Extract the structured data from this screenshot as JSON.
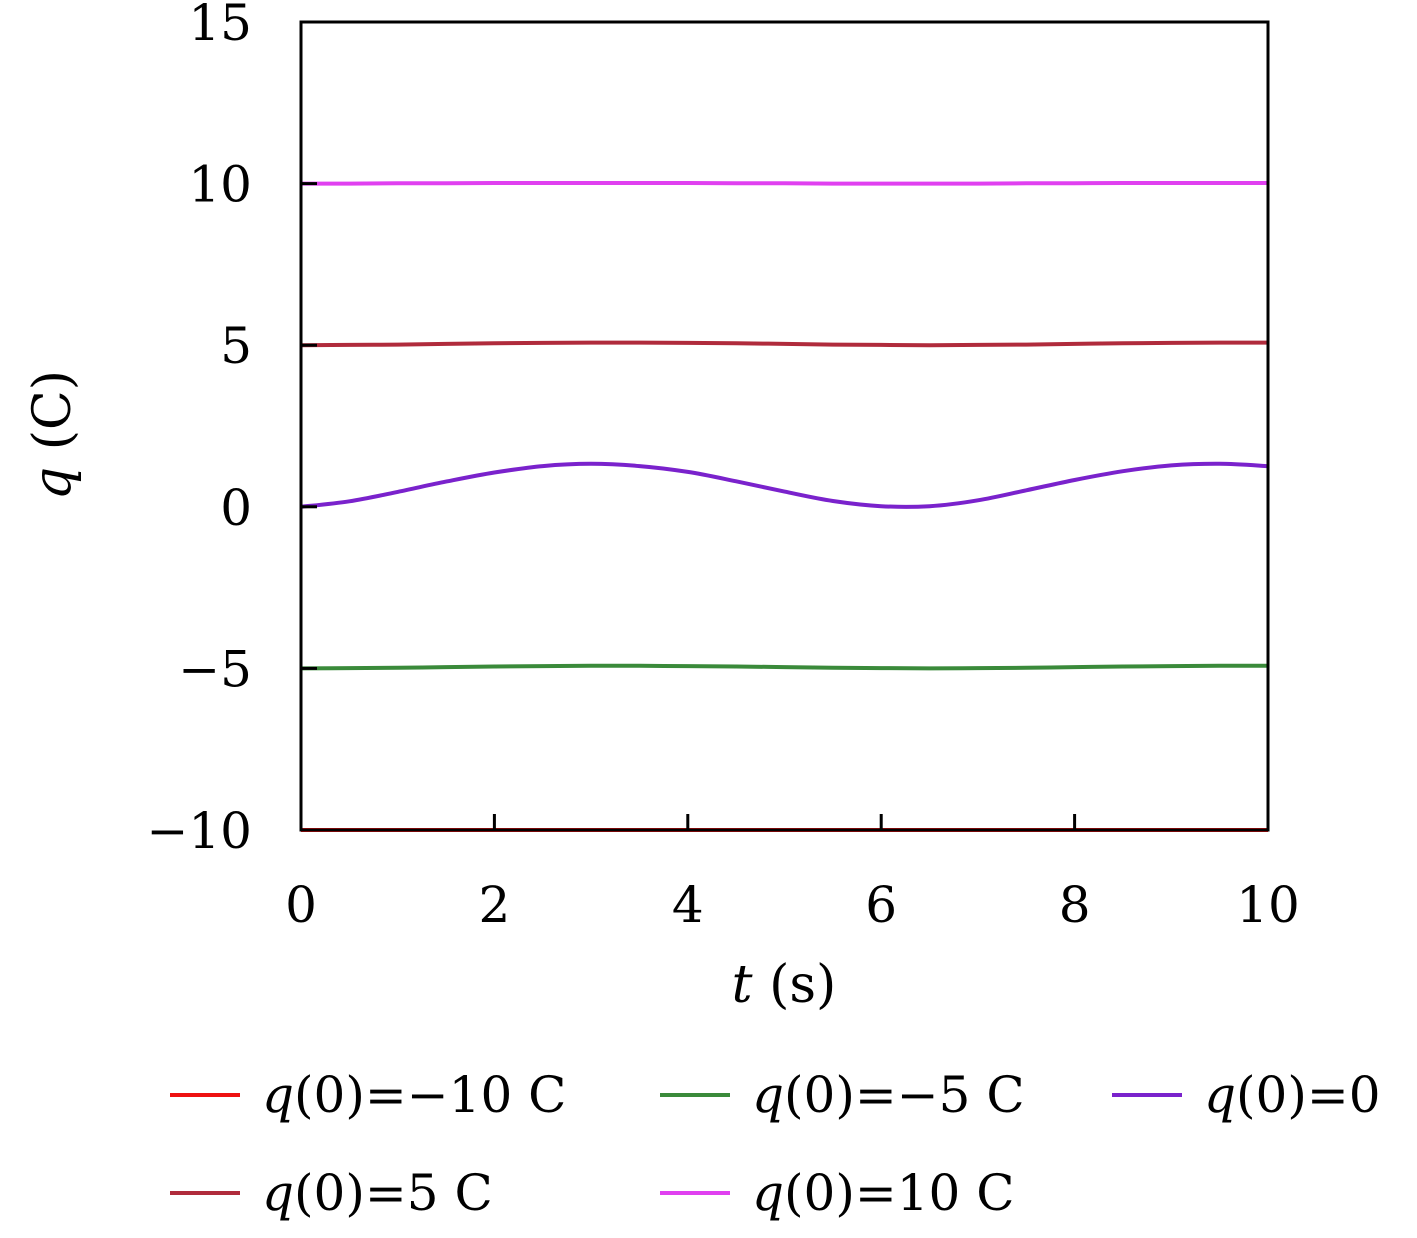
{
  "chart_data": {
    "type": "line",
    "xlabel_var": "t",
    "xlabel_unit": "(s)",
    "ylabel_var": "q",
    "ylabel_unit": "(C)",
    "xlim": [
      0,
      10
    ],
    "ylim": [
      -10,
      15
    ],
    "xticks": [
      0,
      2,
      4,
      6,
      8,
      10
    ],
    "xtick_labels": [
      "0",
      "2",
      "4",
      "6",
      "8",
      "10"
    ],
    "yticks": [
      -10,
      -5,
      0,
      5,
      10,
      15
    ],
    "ytick_labels": [
      "−10",
      "−5",
      "0",
      "5",
      "10",
      "15"
    ],
    "grid": false,
    "legend_position": "bottom",
    "x": [
      0,
      0.5,
      1,
      1.5,
      2,
      2.5,
      3,
      3.5,
      4,
      4.5,
      5,
      5.5,
      6,
      6.5,
      7,
      7.5,
      8,
      8.5,
      9,
      9.5,
      10
    ],
    "series": [
      {
        "name": "q(0)=−10 C",
        "color": "#ee1111",
        "values": [
          -10,
          -10,
          -10,
          -10,
          -10,
          -10,
          -10,
          -10,
          -10,
          -10,
          -10,
          -10,
          -10,
          -10,
          -10,
          -10,
          -10,
          -10,
          -10,
          -10,
          -10
        ]
      },
      {
        "name": "q(0)=−5 C",
        "color": "#3a8a3a",
        "values": [
          -5.0,
          -4.99,
          -4.98,
          -4.96,
          -4.94,
          -4.93,
          -4.92,
          -4.92,
          -4.93,
          -4.94,
          -4.96,
          -4.98,
          -4.99,
          -5.0,
          -4.99,
          -4.98,
          -4.96,
          -4.94,
          -4.93,
          -4.92,
          -4.92
        ]
      },
      {
        "name": "q(0)=0",
        "color": "#7a22cc",
        "values": [
          0,
          0.17,
          0.46,
          0.78,
          1.06,
          1.26,
          1.33,
          1.26,
          1.08,
          0.79,
          0.47,
          0.18,
          0.02,
          0.02,
          0.2,
          0.51,
          0.83,
          1.1,
          1.28,
          1.33,
          1.26
        ]
      },
      {
        "name": "q(0)=5 C",
        "color": "#b02b3c",
        "values": [
          5.0,
          5.01,
          5.02,
          5.04,
          5.06,
          5.07,
          5.08,
          5.08,
          5.07,
          5.06,
          5.04,
          5.02,
          5.01,
          5.0,
          5.01,
          5.02,
          5.04,
          5.06,
          5.07,
          5.08,
          5.08
        ]
      },
      {
        "name": "q(0)=10 C",
        "color": "#e040f0",
        "values": [
          10.0,
          10.0,
          10.01,
          10.01,
          10.02,
          10.02,
          10.02,
          10.02,
          10.02,
          10.01,
          10.01,
          10.0,
          10.0,
          10.0,
          10.0,
          10.01,
          10.01,
          10.02,
          10.02,
          10.02,
          10.02
        ]
      }
    ],
    "legend": [
      {
        "prefix": "q",
        "text": "(0)=−10 C",
        "color": "#ee1111"
      },
      {
        "prefix": "q",
        "text": "(0)=−5 C",
        "color": "#3a8a3a"
      },
      {
        "prefix": "q",
        "text": "(0)=0",
        "color": "#7a22cc"
      },
      {
        "prefix": "q",
        "text": "(0)=5 C",
        "color": "#b02b3c"
      },
      {
        "prefix": "q",
        "text": "(0)=10 C",
        "color": "#e040f0"
      }
    ]
  }
}
